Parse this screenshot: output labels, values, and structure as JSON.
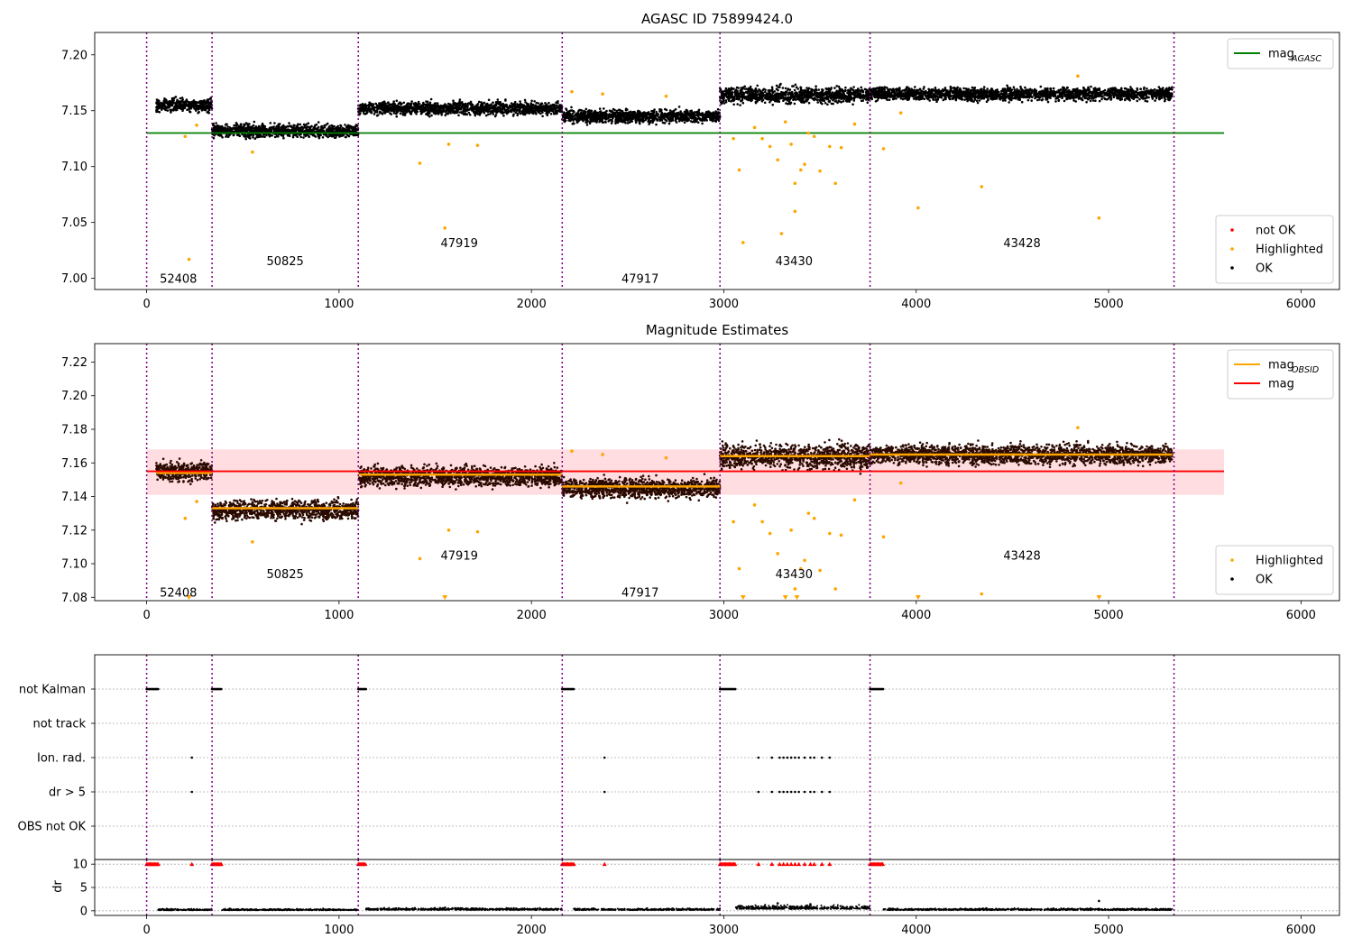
{
  "chart_data": [
    {
      "type": "scatter",
      "title": "AGASC ID 75899424.0",
      "xlim": [
        -270,
        6200
      ],
      "ylim": [
        6.99,
        7.22
      ],
      "xticks": [
        "0",
        "1000",
        "2000",
        "3000",
        "4000",
        "5000",
        "6000"
      ],
      "yticks": [
        "7.00",
        "7.05",
        "7.10",
        "7.15",
        "7.20"
      ],
      "obs_boundaries": [
        0,
        340,
        1100,
        2160,
        2980,
        3760,
        5340
      ],
      "obsids": [
        {
          "label": "52408",
          "x": 165,
          "y": 7.0
        },
        {
          "label": "50825",
          "x": 720,
          "y": 7.016
        },
        {
          "label": "47919",
          "x": 1625,
          "y": 7.032
        },
        {
          "label": "47917",
          "x": 2565,
          "y": 7.0
        },
        {
          "label": "43430",
          "x": 3365,
          "y": 7.016
        },
        {
          "label": "43428",
          "x": 4550,
          "y": 7.032
        }
      ],
      "lines": [
        {
          "name": "mag_AGASC",
          "y": 7.13,
          "x": [
            0,
            5600
          ],
          "color": "#008000"
        }
      ],
      "legend_top": [
        {
          "name": "mag",
          "sub": "AGASC",
          "color": "#008000"
        }
      ],
      "legend_bottom": [
        {
          "name": "not OK",
          "color": "#ff0000"
        },
        {
          "name": "Highlighted",
          "color": "#ffa500"
        },
        {
          "name": "OK",
          "color": "#000000"
        }
      ],
      "segments": [
        {
          "x0": 50,
          "x1": 340,
          "mean": 7.155,
          "sd": 0.004
        },
        {
          "x0": 340,
          "x1": 1100,
          "mean": 7.132,
          "sd": 0.004
        },
        {
          "x0": 1100,
          "x1": 2160,
          "mean": 7.152,
          "sd": 0.004
        },
        {
          "x0": 2160,
          "x1": 2980,
          "mean": 7.145,
          "sd": 0.004
        },
        {
          "x0": 2980,
          "x1": 3760,
          "mean": 7.164,
          "sd": 0.005
        },
        {
          "x0": 3760,
          "x1": 5330,
          "mean": 7.165,
          "sd": 0.004
        }
      ],
      "highlighted": [
        [
          220,
          7.017
        ],
        [
          200,
          7.127
        ],
        [
          260,
          7.137
        ],
        [
          550,
          7.113
        ],
        [
          1420,
          7.103
        ],
        [
          1550,
          7.045
        ],
        [
          1570,
          7.12
        ],
        [
          1720,
          7.119
        ],
        [
          2210,
          7.167
        ],
        [
          2370,
          7.165
        ],
        [
          2700,
          7.163
        ],
        [
          3050,
          7.125
        ],
        [
          3080,
          7.097
        ],
        [
          3100,
          7.032
        ],
        [
          3160,
          7.135
        ],
        [
          3200,
          7.125
        ],
        [
          3240,
          7.118
        ],
        [
          3280,
          7.106
        ],
        [
          3300,
          7.04
        ],
        [
          3320,
          7.14
        ],
        [
          3350,
          7.12
        ],
        [
          3370,
          7.085
        ],
        [
          3370,
          7.06
        ],
        [
          3400,
          7.097
        ],
        [
          3420,
          7.102
        ],
        [
          3440,
          7.13
        ],
        [
          3470,
          7.127
        ],
        [
          3500,
          7.096
        ],
        [
          3550,
          7.118
        ],
        [
          3580,
          7.085
        ],
        [
          3610,
          7.117
        ],
        [
          3680,
          7.138
        ],
        [
          3830,
          7.116
        ],
        [
          3920,
          7.148
        ],
        [
          4010,
          7.063
        ],
        [
          4340,
          7.082
        ],
        [
          4840,
          7.181
        ],
        [
          4950,
          7.054
        ]
      ]
    },
    {
      "type": "scatter",
      "title": "Magnitude Estimates",
      "xlim": [
        -270,
        6200
      ],
      "ylim": [
        7.078,
        7.231
      ],
      "xticks": [
        "0",
        "1000",
        "2000",
        "3000",
        "4000",
        "5000",
        "6000"
      ],
      "yticks": [
        "7.08",
        "7.10",
        "7.12",
        "7.14",
        "7.16",
        "7.18",
        "7.20",
        "7.22"
      ],
      "obs_boundaries": [
        0,
        340,
        1100,
        2160,
        2980,
        3760,
        5340
      ],
      "obsids": [
        {
          "label": "52408",
          "x": 165,
          "y": 7.083
        },
        {
          "label": "50825",
          "x": 720,
          "y": 7.094
        },
        {
          "label": "47919",
          "x": 1625,
          "y": 7.105
        },
        {
          "label": "47917",
          "x": 2565,
          "y": 7.083
        },
        {
          "label": "43430",
          "x": 3365,
          "y": 7.094
        },
        {
          "label": "43428",
          "x": 4550,
          "y": 7.105
        }
      ],
      "band": {
        "y0": 7.141,
        "y1": 7.168,
        "x": [
          0,
          5600
        ],
        "color": "#ffdde0"
      },
      "lines": [
        {
          "name": "mag",
          "y": 7.155,
          "x": [
            0,
            5600
          ],
          "color": "#ff0000"
        }
      ],
      "obsid_lines": [
        {
          "x0": 50,
          "x1": 340,
          "y": 7.154
        },
        {
          "x0": 340,
          "x1": 1100,
          "y": 7.133
        },
        {
          "x0": 1100,
          "x1": 2160,
          "y": 7.153
        },
        {
          "x0": 2160,
          "x1": 2980,
          "y": 7.146
        },
        {
          "x0": 2980,
          "x1": 3760,
          "y": 7.164
        },
        {
          "x0": 3760,
          "x1": 5330,
          "y": 7.165
        }
      ],
      "legend_top": [
        {
          "name": "mag",
          "sub": "OBSID",
          "color": "#ffa500"
        },
        {
          "name": "mag",
          "sub": "",
          "color": "#ff0000"
        }
      ],
      "legend_bottom": [
        {
          "name": "Highlighted",
          "color": "#ffa500"
        },
        {
          "name": "OK",
          "color": "#000000"
        }
      ],
      "clipped": [
        220,
        1550,
        3100,
        3320,
        3380,
        4010,
        4950
      ],
      "segments": [
        {
          "x0": 50,
          "x1": 340,
          "mean": 7.155,
          "sd": 0.004
        },
        {
          "x0": 340,
          "x1": 1100,
          "mean": 7.132,
          "sd": 0.004
        },
        {
          "x0": 1100,
          "x1": 2160,
          "mean": 7.152,
          "sd": 0.004
        },
        {
          "x0": 2160,
          "x1": 2980,
          "mean": 7.145,
          "sd": 0.004
        },
        {
          "x0": 2980,
          "x1": 3760,
          "mean": 7.164,
          "sd": 0.005
        },
        {
          "x0": 3760,
          "x1": 5330,
          "mean": 7.165,
          "sd": 0.004
        }
      ],
      "highlighted": [
        [
          200,
          7.127
        ],
        [
          260,
          7.137
        ],
        [
          550,
          7.113
        ],
        [
          1420,
          7.103
        ],
        [
          1570,
          7.12
        ],
        [
          1720,
          7.119
        ],
        [
          2210,
          7.167
        ],
        [
          2370,
          7.165
        ],
        [
          2700,
          7.163
        ],
        [
          3050,
          7.125
        ],
        [
          3080,
          7.097
        ],
        [
          3160,
          7.135
        ],
        [
          3200,
          7.125
        ],
        [
          3240,
          7.118
        ],
        [
          3280,
          7.106
        ],
        [
          3350,
          7.12
        ],
        [
          3370,
          7.085
        ],
        [
          3400,
          7.097
        ],
        [
          3420,
          7.102
        ],
        [
          3440,
          7.13
        ],
        [
          3470,
          7.127
        ],
        [
          3500,
          7.096
        ],
        [
          3550,
          7.118
        ],
        [
          3580,
          7.085
        ],
        [
          3610,
          7.117
        ],
        [
          3680,
          7.138
        ],
        [
          3830,
          7.116
        ],
        [
          3920,
          7.148
        ],
        [
          4340,
          7.082
        ],
        [
          4840,
          7.181
        ]
      ]
    },
    {
      "type": "scatter",
      "title": "",
      "xlim": [
        -270,
        6200
      ],
      "xticks": [
        "0",
        "1000",
        "2000",
        "3000",
        "4000",
        "5000",
        "6000"
      ],
      "categories": [
        "not Kalman",
        "not track",
        "Ion. rad.",
        "dr > 5",
        "OBS not OK"
      ],
      "obs_boundaries": [
        0,
        340,
        1100,
        2160,
        2980,
        3760,
        5340
      ],
      "flags": {
        "not Kalman": [
          [
            0,
            60
          ],
          [
            340,
            390
          ],
          [
            1100,
            1140
          ],
          [
            2160,
            2220
          ],
          [
            2980,
            3060
          ],
          [
            3760,
            3830
          ]
        ],
        "not track": [],
        "Ion. rad.": [
          235,
          2380,
          3180,
          3250,
          3290,
          3310,
          3330,
          3350,
          3370,
          3390,
          3420,
          3450,
          3470,
          3510,
          3550
        ],
        "dr > 5": [
          235,
          2380,
          3180,
          3250,
          3290,
          3310,
          3330,
          3350,
          3370,
          3390,
          3420,
          3450,
          3470,
          3510,
          3550
        ],
        "OBS not OK": []
      },
      "dr_ylabel": "dr",
      "dr_yticks": [
        "0",
        "5",
        "10"
      ],
      "dr_ylim": [
        -1,
        11
      ],
      "dr_clipped": [
        [
          0,
          60
        ],
        [
          340,
          390
        ],
        [
          1100,
          1140
        ],
        [
          2160,
          2220
        ],
        [
          2980,
          3060
        ],
        [
          3760,
          3830
        ],
        235,
        2380,
        3180,
        3250,
        3290,
        3310,
        3330,
        3350,
        3370,
        3390,
        3420,
        3450,
        3470,
        3510,
        3550
      ],
      "dr_segments": [
        {
          "x0": 60,
          "x1": 340,
          "mean": 0.2
        },
        {
          "x0": 390,
          "x1": 1100,
          "mean": 0.2
        },
        {
          "x0": 1140,
          "x1": 2160,
          "mean": 0.3
        },
        {
          "x0": 2220,
          "x1": 2980,
          "mean": 0.25
        },
        {
          "x0": 3060,
          "x1": 3760,
          "mean": 0.6
        },
        {
          "x0": 3830,
          "x1": 5330,
          "mean": 0.25
        }
      ],
      "dr_outliers": [
        [
          4950,
          2.1
        ],
        [
          3280,
          1.6
        ],
        [
          3450,
          1.4
        ]
      ]
    }
  ]
}
